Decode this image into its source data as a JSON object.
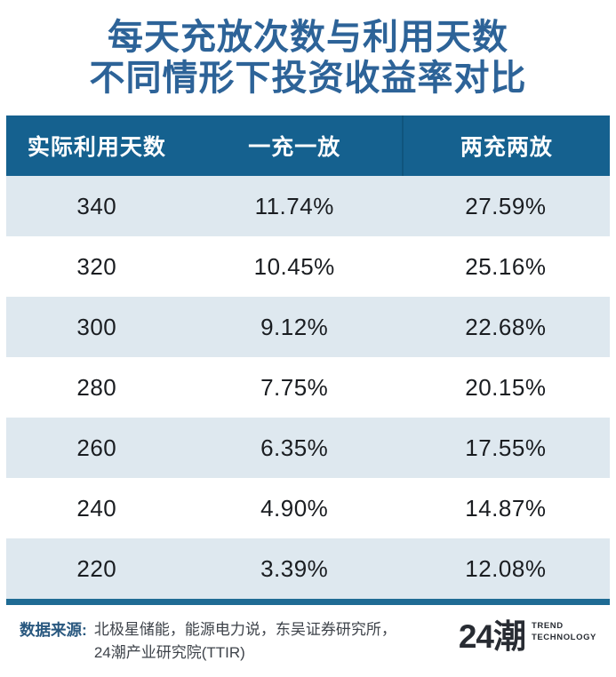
{
  "title": {
    "line1": "每天充放次数与利用天数",
    "line2": "不同情形下投资收益率对比"
  },
  "chart_data": {
    "type": "table",
    "title": "每天充放次数与利用天数不同情形下投资收益率对比",
    "columns": [
      "实际利用天数",
      "一充一放",
      "两充两放"
    ],
    "rows": [
      [
        "340",
        "11.74%",
        "27.59%"
      ],
      [
        "320",
        "10.45%",
        "25.16%"
      ],
      [
        "300",
        "9.12%",
        "22.68%"
      ],
      [
        "280",
        "7.75%",
        "20.15%"
      ],
      [
        "260",
        "6.35%",
        "17.55%"
      ],
      [
        "240",
        "4.90%",
        "14.87%"
      ],
      [
        "220",
        "3.39%",
        "12.08%"
      ]
    ],
    "row_striping": "alternating, first row shaded",
    "units": "收益率 (%)"
  },
  "footer": {
    "source_label": "数据来源:",
    "source_line1": "北极星储能，能源电力说，东吴证券研究所，",
    "source_line2": "24潮产业研究院(TTIR)",
    "logo": {
      "wordmark": "24潮",
      "tagline_line1": "TREND",
      "tagline_line2": "TECHNOLOGY"
    }
  },
  "colors": {
    "title_text": "#2d6398",
    "header_bg": "#15618f",
    "header_text": "#ffffff",
    "row_shaded_bg": "#dee8ef",
    "row_plain_bg": "#ffffff",
    "body_text": "#1a1d21",
    "bottom_accent": "#1f6b94",
    "source_label": "#29587f",
    "source_text": "#3e434a",
    "logo_text": "#282c33"
  }
}
